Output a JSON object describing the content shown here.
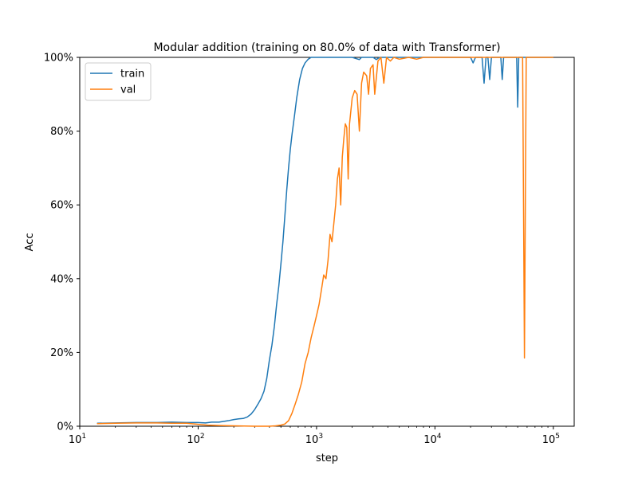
{
  "chart_data": {
    "type": "line",
    "title": "Modular addition (training on 80.0% of data with Transformer)",
    "xlabel": "step",
    "ylabel": "Acc",
    "xscale": "log",
    "xlim": [
      10,
      150000
    ],
    "ylim": [
      0,
      1
    ],
    "x_ticks": [
      {
        "value": 10,
        "base": "10",
        "exp": "1"
      },
      {
        "value": 100,
        "base": "10",
        "exp": "2"
      },
      {
        "value": 1000,
        "base": "10",
        "exp": "3"
      },
      {
        "value": 10000,
        "base": "10",
        "exp": "4"
      },
      {
        "value": 100000,
        "base": "10",
        "exp": "5"
      }
    ],
    "y_ticks": [
      {
        "value": 0,
        "label": "0%"
      },
      {
        "value": 0.2,
        "label": "20%"
      },
      {
        "value": 0.4,
        "label": "40%"
      },
      {
        "value": 0.6,
        "label": "60%"
      },
      {
        "value": 0.8,
        "label": "80%"
      },
      {
        "value": 1.0,
        "label": "100%"
      }
    ],
    "grid": false,
    "legend_position": "top-left",
    "series": [
      {
        "name": "train",
        "color": "#1f77b4",
        "points": [
          [
            14,
            0.008
          ],
          [
            20,
            0.009
          ],
          [
            30,
            0.01
          ],
          [
            45,
            0.01
          ],
          [
            60,
            0.011
          ],
          [
            80,
            0.01
          ],
          [
            100,
            0.01
          ],
          [
            115,
            0.009
          ],
          [
            130,
            0.011
          ],
          [
            150,
            0.011
          ],
          [
            180,
            0.015
          ],
          [
            200,
            0.018
          ],
          [
            220,
            0.02
          ],
          [
            240,
            0.021
          ],
          [
            260,
            0.025
          ],
          [
            280,
            0.033
          ],
          [
            300,
            0.045
          ],
          [
            320,
            0.06
          ],
          [
            340,
            0.075
          ],
          [
            360,
            0.095
          ],
          [
            380,
            0.13
          ],
          [
            400,
            0.18
          ],
          [
            420,
            0.22
          ],
          [
            440,
            0.27
          ],
          [
            460,
            0.33
          ],
          [
            480,
            0.38
          ],
          [
            500,
            0.44
          ],
          [
            520,
            0.5
          ],
          [
            540,
            0.57
          ],
          [
            560,
            0.64
          ],
          [
            580,
            0.7
          ],
          [
            600,
            0.75
          ],
          [
            620,
            0.79
          ],
          [
            650,
            0.84
          ],
          [
            680,
            0.89
          ],
          [
            720,
            0.94
          ],
          [
            760,
            0.97
          ],
          [
            800,
            0.985
          ],
          [
            850,
            0.995
          ],
          [
            900,
            1.0
          ],
          [
            1000,
            1.0
          ],
          [
            1500,
            1.0
          ],
          [
            2000,
            1.0
          ],
          [
            2300,
            0.994
          ],
          [
            2400,
            1.0
          ],
          [
            3000,
            1.0
          ],
          [
            3200,
            0.994
          ],
          [
            3400,
            1.0
          ],
          [
            5000,
            1.0
          ],
          [
            10000,
            1.0
          ],
          [
            20000,
            1.0
          ],
          [
            21000,
            0.985
          ],
          [
            22000,
            1.0
          ],
          [
            25000,
            1.0
          ],
          [
            26000,
            0.93
          ],
          [
            27000,
            1.0
          ],
          [
            28000,
            1.0
          ],
          [
            29000,
            0.94
          ],
          [
            30000,
            1.0
          ],
          [
            36000,
            1.0
          ],
          [
            37000,
            0.94
          ],
          [
            38000,
            1.0
          ],
          [
            49000,
            1.0
          ],
          [
            50000,
            0.865
          ],
          [
            51000,
            1.0
          ],
          [
            100000,
            1.0
          ]
        ]
      },
      {
        "name": "val",
        "color": "#ff7f0e",
        "points": [
          [
            14,
            0.007
          ],
          [
            20,
            0.008
          ],
          [
            30,
            0.009
          ],
          [
            45,
            0.009
          ],
          [
            60,
            0.008
          ],
          [
            80,
            0.008
          ],
          [
            100,
            0.005
          ],
          [
            120,
            0.003
          ],
          [
            150,
            0.002
          ],
          [
            200,
            0.001
          ],
          [
            300,
            0.0
          ],
          [
            400,
            0.0
          ],
          [
            450,
            0.001
          ],
          [
            500,
            0.003
          ],
          [
            540,
            0.006
          ],
          [
            580,
            0.015
          ],
          [
            620,
            0.035
          ],
          [
            660,
            0.06
          ],
          [
            700,
            0.085
          ],
          [
            750,
            0.12
          ],
          [
            800,
            0.17
          ],
          [
            850,
            0.2
          ],
          [
            900,
            0.24
          ],
          [
            950,
            0.27
          ],
          [
            1000,
            0.3
          ],
          [
            1050,
            0.33
          ],
          [
            1100,
            0.37
          ],
          [
            1150,
            0.41
          ],
          [
            1200,
            0.4
          ],
          [
            1250,
            0.45
          ],
          [
            1300,
            0.52
          ],
          [
            1350,
            0.5
          ],
          [
            1400,
            0.55
          ],
          [
            1450,
            0.6
          ],
          [
            1500,
            0.67
          ],
          [
            1550,
            0.7
          ],
          [
            1600,
            0.6
          ],
          [
            1650,
            0.73
          ],
          [
            1700,
            0.78
          ],
          [
            1750,
            0.82
          ],
          [
            1800,
            0.81
          ],
          [
            1850,
            0.67
          ],
          [
            1900,
            0.82
          ],
          [
            2000,
            0.89
          ],
          [
            2100,
            0.91
          ],
          [
            2200,
            0.9
          ],
          [
            2300,
            0.8
          ],
          [
            2400,
            0.93
          ],
          [
            2500,
            0.96
          ],
          [
            2650,
            0.95
          ],
          [
            2750,
            0.9
          ],
          [
            2850,
            0.97
          ],
          [
            3000,
            0.98
          ],
          [
            3100,
            0.9
          ],
          [
            3300,
            0.99
          ],
          [
            3500,
            1.0
          ],
          [
            3700,
            0.93
          ],
          [
            3900,
            1.0
          ],
          [
            4200,
            0.99
          ],
          [
            4500,
            1.0
          ],
          [
            5000,
            0.995
          ],
          [
            6000,
            1.0
          ],
          [
            7000,
            0.995
          ],
          [
            8000,
            1.0
          ],
          [
            10000,
            1.0
          ],
          [
            15000,
            1.0
          ],
          [
            20000,
            1.0
          ],
          [
            30000,
            1.0
          ],
          [
            40000,
            1.0
          ],
          [
            55000,
            1.0
          ],
          [
            56000,
            0.6
          ],
          [
            57000,
            0.185
          ],
          [
            58000,
            0.6
          ],
          [
            59000,
            1.0
          ],
          [
            70000,
            1.0
          ],
          [
            100000,
            1.0
          ]
        ]
      }
    ]
  }
}
